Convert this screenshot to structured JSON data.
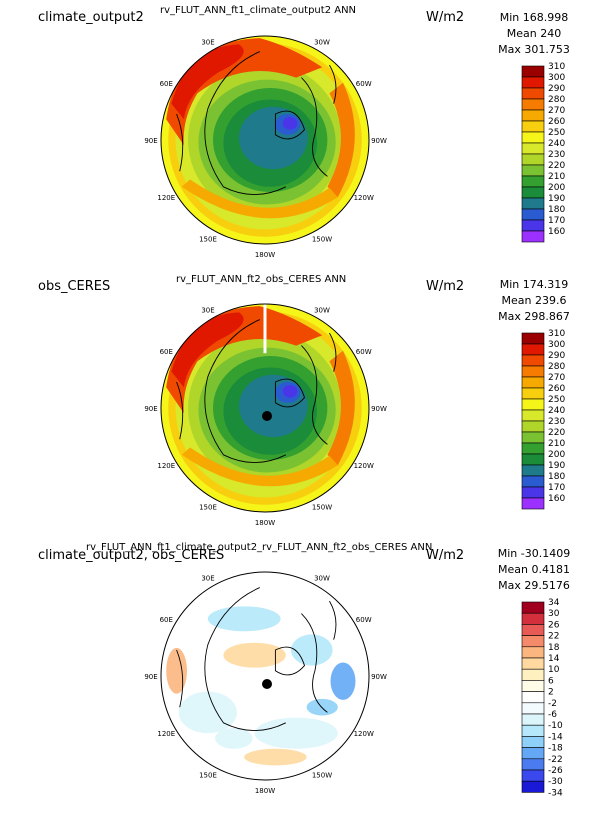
{
  "colors": {
    "abs_scale": [
      "#9c31ff",
      "#4a35e8",
      "#2a5bd1",
      "#1f7a8c",
      "#1a8c3a",
      "#33a030",
      "#7bc232",
      "#b0d62a",
      "#d8e82a",
      "#f6f51a",
      "#f7cf0f",
      "#f6a900",
      "#f57c00",
      "#f04a00",
      "#e01800",
      "#9a0000"
    ],
    "diff_scale": [
      "#1a1ad6",
      "#3b48ee",
      "#4a7cf0",
      "#64a8f5",
      "#8ed0f8",
      "#b4e8fa",
      "#dcf5fb",
      "#f4fbff",
      "#ffffff",
      "#fffde8",
      "#fff0c0",
      "#ffd9a0",
      "#fbb680",
      "#f48a6a",
      "#e85a55",
      "#d42f3c",
      "#a0001e"
    ]
  },
  "longitude_labels": [
    "30E",
    "30W",
    "60E",
    "60W",
    "90E",
    "90W",
    "120E",
    "120W",
    "150E",
    "150W",
    "180W"
  ],
  "panels": [
    {
      "left_title": "climate_output2",
      "center_title": "rv_FLUT_ANN_ft1_climate_output2  ANN",
      "units": "W/m2",
      "stats": {
        "min": "Min 168.998",
        "mean": "Mean 240",
        "max": "Max 301.753"
      },
      "colorbar_labels": [
        "310",
        "300",
        "290",
        "280",
        "270",
        "260",
        "250",
        "240",
        "230",
        "220",
        "210",
        "200",
        "190",
        "180",
        "170",
        "160"
      ],
      "field_type": "absolute"
    },
    {
      "left_title": "obs_CERES",
      "center_title": "rv_FLUT_ANN_ft2_obs_CERES  ANN",
      "units": "W/m2",
      "stats": {
        "min": "Min 174.319",
        "mean": "Mean 239.6",
        "max": "Max 298.867"
      },
      "colorbar_labels": [
        "310",
        "300",
        "290",
        "280",
        "270",
        "260",
        "250",
        "240",
        "230",
        "220",
        "210",
        "200",
        "190",
        "180",
        "170",
        "160"
      ],
      "field_type": "absolute"
    },
    {
      "left_title": "climate_output2, obs_CERES",
      "center_title": "rv_FLUT_ANN_ft1_climate_output2_rv_FLUT_ANN_ft2_obs_CERES  ANN",
      "units": "W/m2",
      "stats": {
        "min": "Min -30.1409",
        "mean": "Mean 0.4181",
        "max": "Max 29.5176"
      },
      "colorbar_labels": [
        "34",
        "30",
        "26",
        "22",
        "18",
        "14",
        "10",
        "6",
        "2",
        "-2",
        "-6",
        "-10",
        "-14",
        "-18",
        "-22",
        "-26",
        "-30",
        "-34"
      ],
      "field_type": "difference"
    }
  ]
}
